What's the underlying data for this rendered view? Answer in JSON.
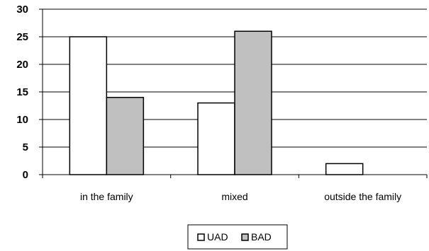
{
  "chart_data": {
    "type": "bar",
    "categories": [
      "in the family",
      "mixed",
      "outside the family"
    ],
    "series": [
      {
        "name": "UAD",
        "values": [
          25,
          13,
          2
        ],
        "color": "#ffffff"
      },
      {
        "name": "BAD",
        "values": [
          14,
          26,
          0
        ],
        "color": "#c0c0c0"
      }
    ],
    "yticks": [
      "0",
      "5",
      "10",
      "15",
      "20",
      "25",
      "30"
    ],
    "ylim": [
      0,
      30
    ],
    "grid": true,
    "legend": "bottom"
  }
}
